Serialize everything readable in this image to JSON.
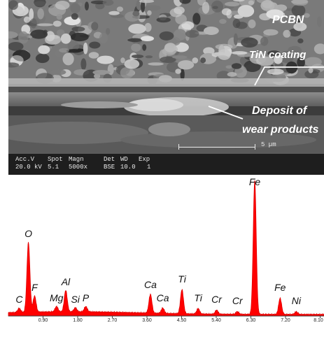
{
  "micrograph": {
    "labels": {
      "pcbn": "PCBN",
      "tin_coating": "TiN coating",
      "deposit_line1": "Deposit of",
      "deposit_line2": "wear products"
    },
    "metadata": {
      "acc_v": {
        "header": "Acc.V",
        "value": "20.0 kV"
      },
      "spot": {
        "header": "Spot",
        "value": "5.1"
      },
      "magn": {
        "header": "Magn",
        "value": "5000x"
      },
      "det": {
        "header": "Det",
        "value": "BSE"
      },
      "wd": {
        "header": "WD",
        "value": "10.0"
      },
      "exp": {
        "header": "Exp",
        "value": "1"
      }
    },
    "scale_bar_label": "5 µm"
  },
  "chart_data": {
    "type": "line",
    "title": "",
    "xlabel": "",
    "ylabel": "",
    "x_ticks": [
      "0.90",
      "1.80",
      "2.70",
      "3.60",
      "4.50",
      "5.40",
      "6.30",
      "7.20",
      "8.10"
    ],
    "xlim": [
      0,
      8.2
    ],
    "ylim": [
      0,
      100
    ],
    "fill_color": "#ff0000",
    "peaks": [
      {
        "element": "C",
        "energy": 0.28,
        "height": 3
      },
      {
        "element": "O",
        "energy": 0.52,
        "height": 52
      },
      {
        "element": "F",
        "energy": 0.68,
        "height": 12
      },
      {
        "element": "Mg",
        "energy": 1.25,
        "height": 4
      },
      {
        "element": "Al",
        "energy": 1.49,
        "height": 16
      },
      {
        "element": "Si",
        "energy": 1.74,
        "height": 3
      },
      {
        "element": "P",
        "energy": 2.01,
        "height": 4
      },
      {
        "element": "Ca",
        "energy": 3.69,
        "height": 14
      },
      {
        "element": "Ca",
        "energy": 4.01,
        "height": 4
      },
      {
        "element": "Ti",
        "energy": 4.51,
        "height": 18
      },
      {
        "element": "Ti",
        "energy": 4.93,
        "height": 4
      },
      {
        "element": "Cr",
        "energy": 5.41,
        "height": 3
      },
      {
        "element": "Cr",
        "energy": 5.95,
        "height": 2
      },
      {
        "element": "Fe",
        "energy": 6.4,
        "height": 100
      },
      {
        "element": "Fe",
        "energy": 7.06,
        "height": 12
      },
      {
        "element": "Ni",
        "energy": 7.48,
        "height": 2
      }
    ]
  }
}
